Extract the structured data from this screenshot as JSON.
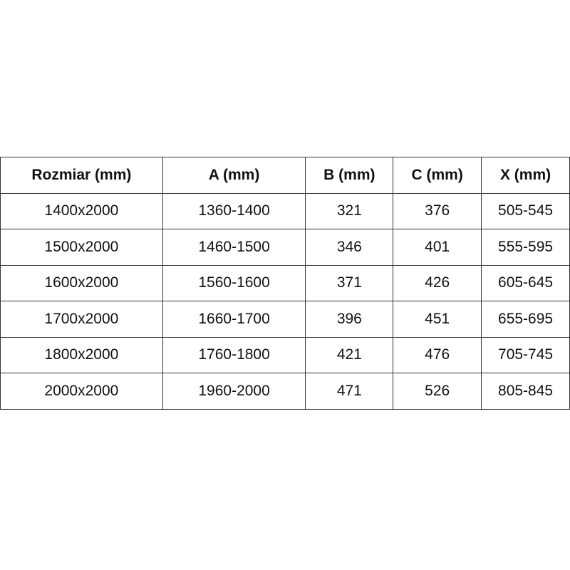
{
  "table": {
    "headers": [
      "Rozmiar (mm)",
      "A (mm)",
      "B (mm)",
      "C (mm)",
      "X (mm)"
    ],
    "rows": [
      [
        "1400x2000",
        "1360-1400",
        "321",
        "376",
        "505-545"
      ],
      [
        "1500x2000",
        "1460-1500",
        "346",
        "401",
        "555-595"
      ],
      [
        "1600x2000",
        "1560-1600",
        "371",
        "426",
        "605-645"
      ],
      [
        "1700x2000",
        "1660-1700",
        "396",
        "451",
        "655-695"
      ],
      [
        "1800x2000",
        "1760-1800",
        "421",
        "476",
        "705-745"
      ],
      [
        "2000x2000",
        "1960-2000",
        "471",
        "526",
        "805-845"
      ]
    ]
  }
}
